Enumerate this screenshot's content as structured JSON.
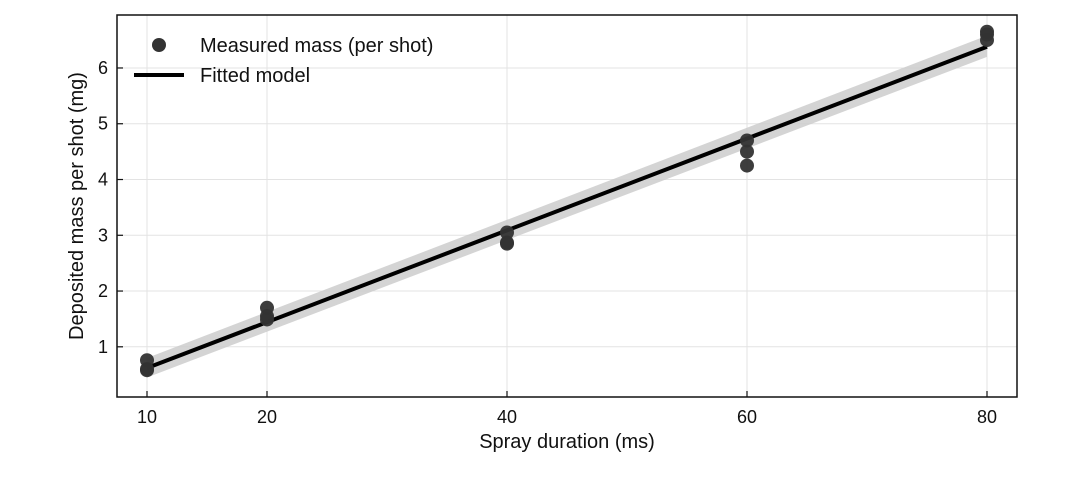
{
  "chart_data": {
    "type": "scatter",
    "xlabel": "Spray duration (ms)",
    "ylabel": "Deposited mass per shot (mg)",
    "xlim": [
      7.5,
      82.5
    ],
    "ylim": [
      0.1,
      6.95
    ],
    "xticks": [
      10,
      20,
      40,
      60,
      80
    ],
    "yticks": [
      1,
      2,
      3,
      4,
      5,
      6
    ],
    "grid": true,
    "legend_position": "top-left",
    "series": [
      {
        "name": "Measured mass (per shot)",
        "kind": "scatter",
        "color": "#333333",
        "points": [
          {
            "x": 10,
            "y": 0.76
          },
          {
            "x": 10,
            "y": 0.6
          },
          {
            "x": 10,
            "y": 0.58
          },
          {
            "x": 20,
            "y": 1.7
          },
          {
            "x": 20,
            "y": 1.55
          },
          {
            "x": 20,
            "y": 1.49
          },
          {
            "x": 40,
            "y": 3.05
          },
          {
            "x": 40,
            "y": 2.87
          },
          {
            "x": 40,
            "y": 2.85
          },
          {
            "x": 60,
            "y": 4.7
          },
          {
            "x": 60,
            "y": 4.5
          },
          {
            "x": 60,
            "y": 4.25
          },
          {
            "x": 80,
            "y": 6.65
          },
          {
            "x": 80,
            "y": 6.6
          },
          {
            "x": 80,
            "y": 6.5
          }
        ]
      },
      {
        "name": "Fitted model",
        "kind": "line",
        "color": "#000000",
        "points": [
          {
            "x": 10,
            "y": 0.62
          },
          {
            "x": 80,
            "y": 6.38
          }
        ],
        "band": {
          "color": "#cccccc",
          "points": [
            {
              "x": 10,
              "lower": 0.45,
              "upper": 0.8
            },
            {
              "x": 80,
              "lower": 6.2,
              "upper": 6.58
            }
          ]
        }
      }
    ]
  }
}
